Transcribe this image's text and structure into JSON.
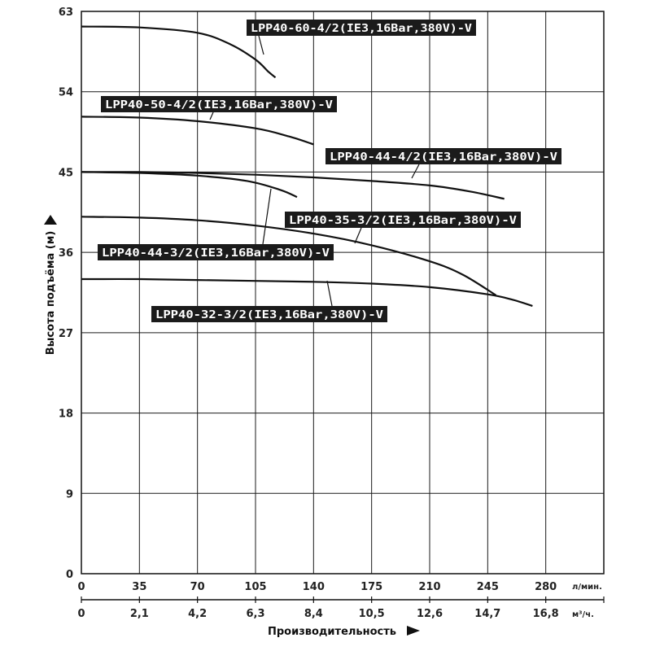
{
  "chart_data": {
    "type": "line",
    "title": "",
    "ylabel": "Высота подъёма (м)",
    "xlabel": "Производительность",
    "ylim": [
      0,
      63
    ],
    "y_ticks": [
      0,
      9,
      18,
      27,
      36,
      45,
      54,
      63
    ],
    "x_primary": {
      "unit": "л/мин.",
      "range": [
        0,
        315
      ],
      "ticks": [
        "0",
        "35",
        "70",
        "105",
        "140",
        "175",
        "210",
        "245",
        "280"
      ]
    },
    "x_secondary": {
      "unit": "м³/ч.",
      "ticks": [
        "0",
        "2,1",
        "4,2",
        "6,3",
        "8,4",
        "10,5",
        "12,6",
        "14,7",
        "16,8"
      ]
    },
    "grid": true,
    "series": [
      {
        "name": "LPP40-60-4/2(IE3,16Bar,380V)-V",
        "points": [
          [
            0,
            61.3
          ],
          [
            35,
            61.2
          ],
          [
            70,
            60.6
          ],
          [
            90,
            59.3
          ],
          [
            105,
            57.6
          ],
          [
            113,
            56.2
          ],
          [
            117,
            55.6
          ]
        ]
      },
      {
        "name": "LPP40-50-4/2(IE3,16Bar,380V)-V",
        "points": [
          [
            0,
            51.2
          ],
          [
            35,
            51.1
          ],
          [
            70,
            50.7
          ],
          [
            105,
            49.9
          ],
          [
            125,
            49.0
          ],
          [
            140,
            48.1
          ]
        ]
      },
      {
        "name": "LPP40-44-4/2(IE3,16Bar,380V)-V",
        "points": [
          [
            0,
            45.0
          ],
          [
            35,
            45.0
          ],
          [
            70,
            44.9
          ],
          [
            105,
            44.7
          ],
          [
            140,
            44.4
          ],
          [
            175,
            44.0
          ],
          [
            210,
            43.5
          ],
          [
            235,
            42.8
          ],
          [
            255,
            42.0
          ]
        ]
      },
      {
        "name": "LPP40-44-3/2(IE3,16Bar,380V)-V",
        "points": [
          [
            0,
            45.0
          ],
          [
            35,
            44.9
          ],
          [
            70,
            44.6
          ],
          [
            100,
            44.0
          ],
          [
            120,
            43.0
          ],
          [
            130,
            42.2
          ]
        ]
      },
      {
        "name": "LPP40-35-3/2(IE3,16Bar,380V)-V",
        "points": [
          [
            0,
            40.0
          ],
          [
            35,
            39.9
          ],
          [
            70,
            39.6
          ],
          [
            105,
            39.0
          ],
          [
            140,
            38.1
          ],
          [
            175,
            36.8
          ],
          [
            210,
            35.0
          ],
          [
            230,
            33.5
          ],
          [
            250,
            31.2
          ]
        ]
      },
      {
        "name": "LPP40-32-3/2(IE3,16Bar,380V)-V",
        "points": [
          [
            0,
            33.0
          ],
          [
            35,
            33.0
          ],
          [
            70,
            32.9
          ],
          [
            105,
            32.8
          ],
          [
            140,
            32.7
          ],
          [
            175,
            32.5
          ],
          [
            210,
            32.1
          ],
          [
            245,
            31.3
          ],
          [
            260,
            30.7
          ],
          [
            272,
            30.0
          ]
        ]
      }
    ]
  }
}
